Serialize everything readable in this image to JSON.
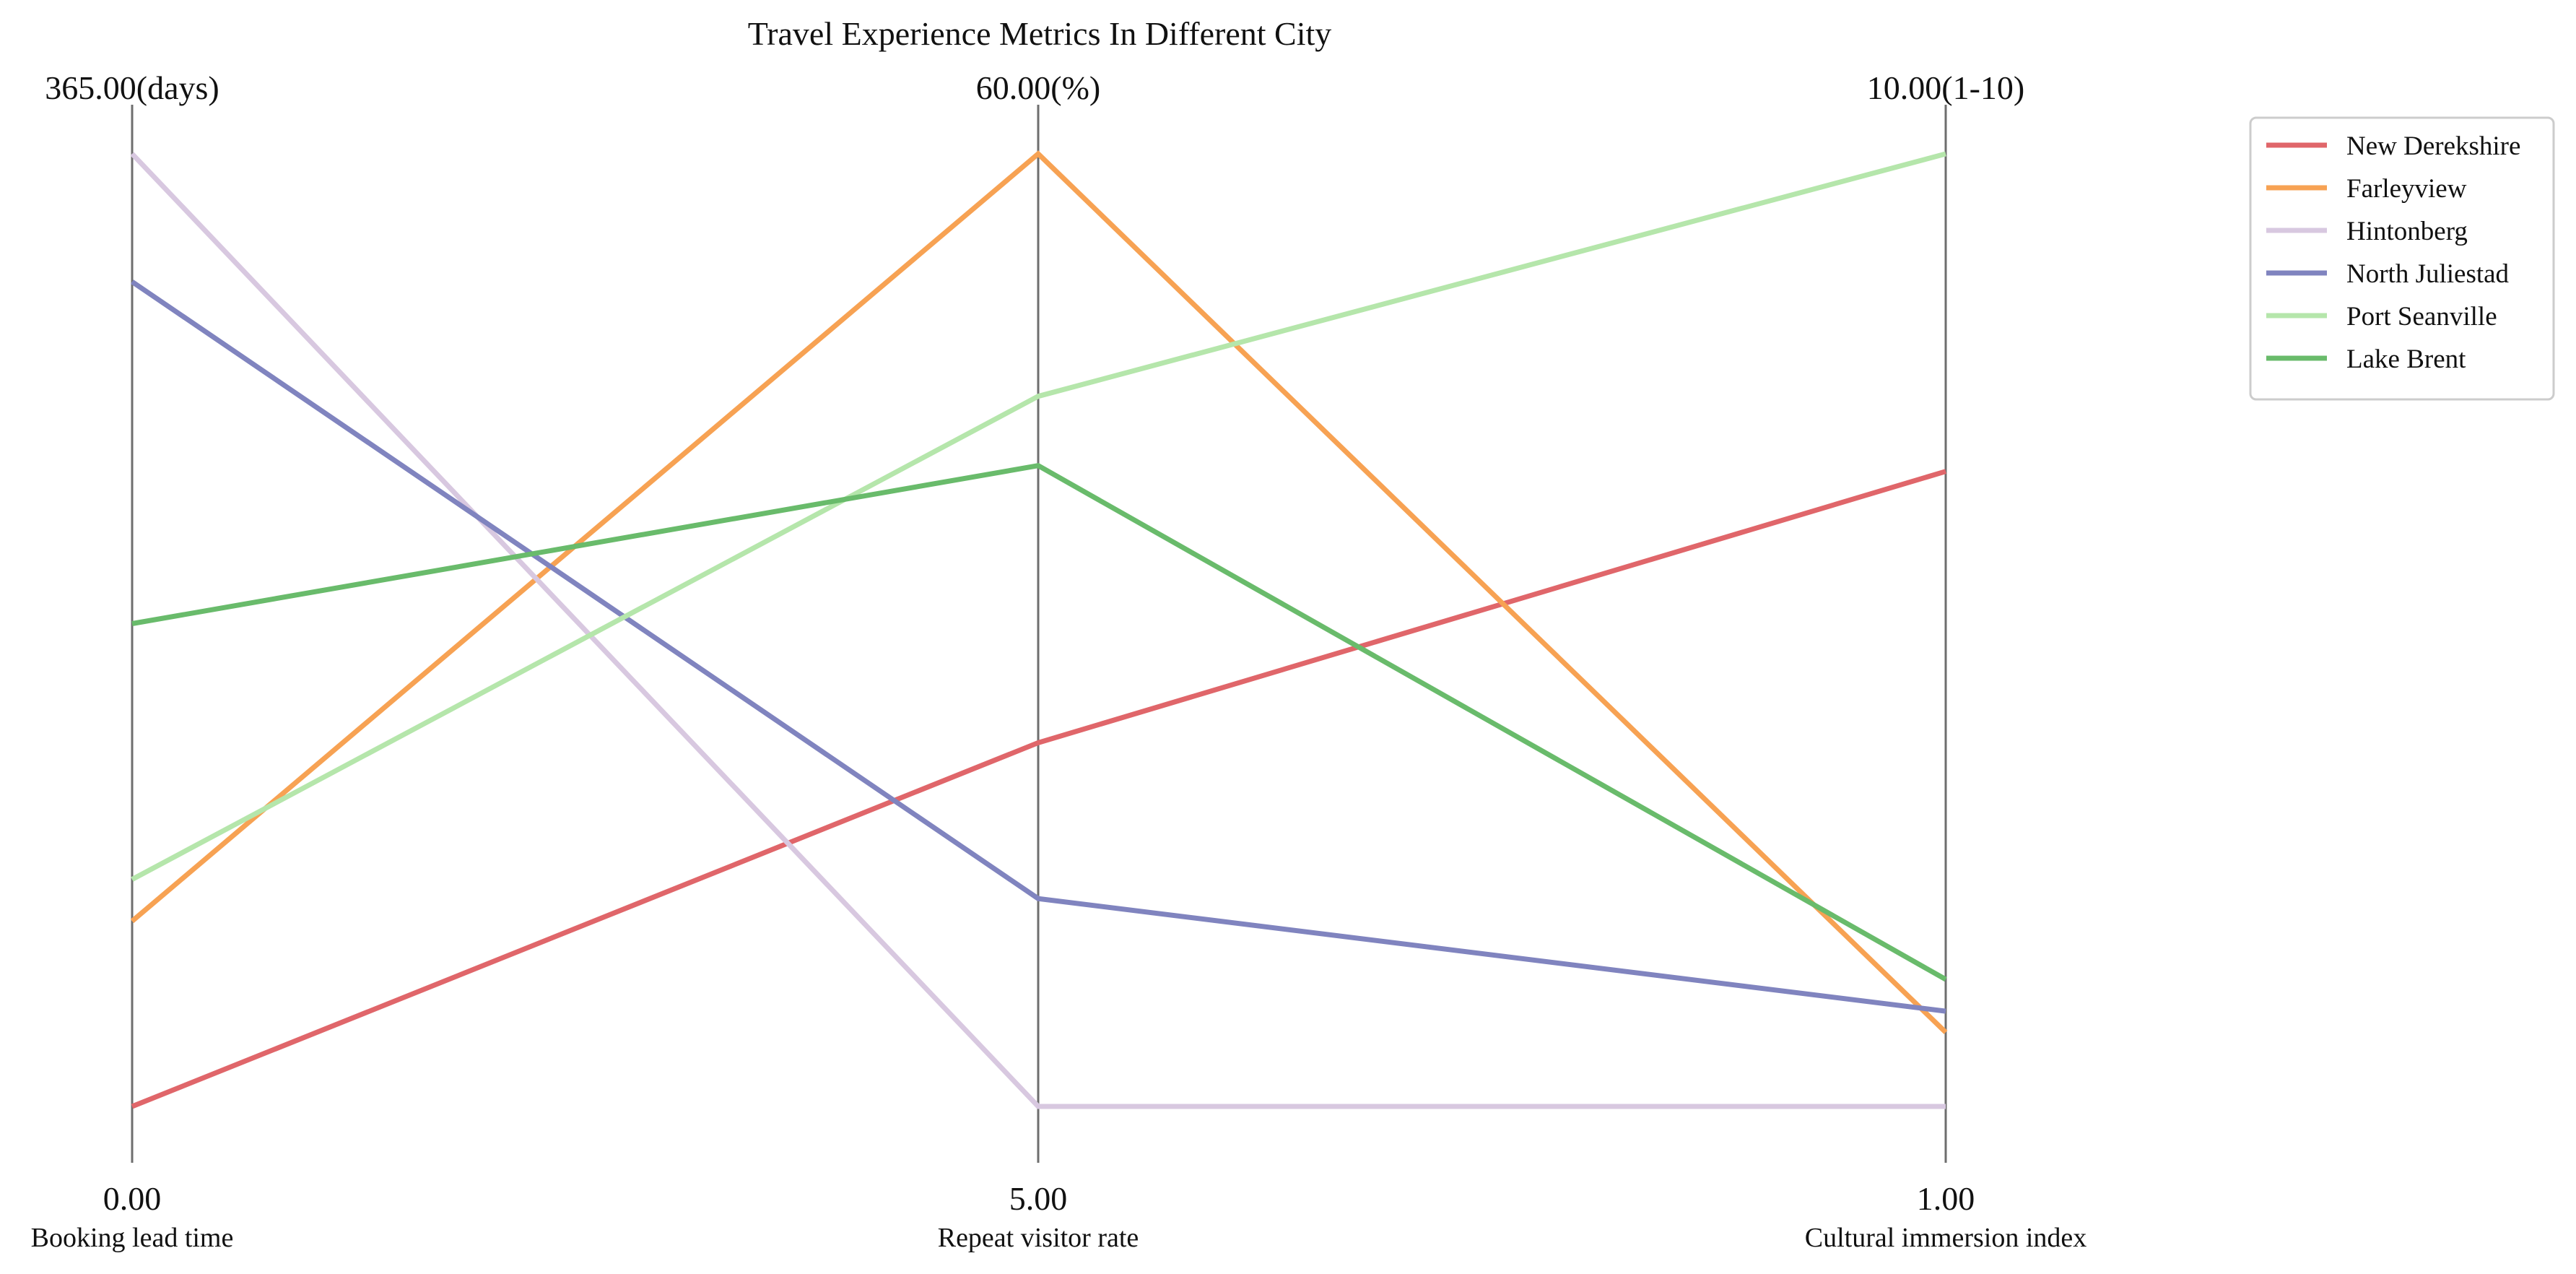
{
  "chart_data": {
    "type": "parallel-coordinates",
    "title": "Travel Experience Metrics In Different City",
    "axes": [
      {
        "label": "Booking lead time",
        "min": 0,
        "max": 365,
        "min_label": "0.00",
        "max_label": "365.00(days)"
      },
      {
        "label": "Repeat visitor rate",
        "min": 5,
        "max": 60,
        "min_label": "5.00",
        "max_label": "60.00(%)"
      },
      {
        "label": "Cultural immersion index",
        "min": 1,
        "max": 10,
        "min_label": "1.00",
        "max_label": "10.00(1-10)"
      }
    ],
    "series": [
      {
        "name": "New Derekshire",
        "color": "#e0666a",
        "values": [
          0,
          26,
          7.0
        ]
      },
      {
        "name": "Farleyview",
        "color": "#f7a253",
        "values": [
          71,
          60,
          1.7
        ]
      },
      {
        "name": "Hintonberg",
        "color": "#d8c8e0",
        "values": [
          365,
          5,
          1.0
        ]
      },
      {
        "name": "North Juliestad",
        "color": "#8084bf",
        "values": [
          316,
          17,
          1.9
        ]
      },
      {
        "name": "Port Seanville",
        "color": "#b5e6ab",
        "values": [
          87,
          46,
          10.0
        ]
      },
      {
        "name": "Lake Brent",
        "color": "#69bb6b",
        "values": [
          185,
          42,
          2.2
        ]
      }
    ],
    "legend_position": "top-right",
    "grid": false
  }
}
